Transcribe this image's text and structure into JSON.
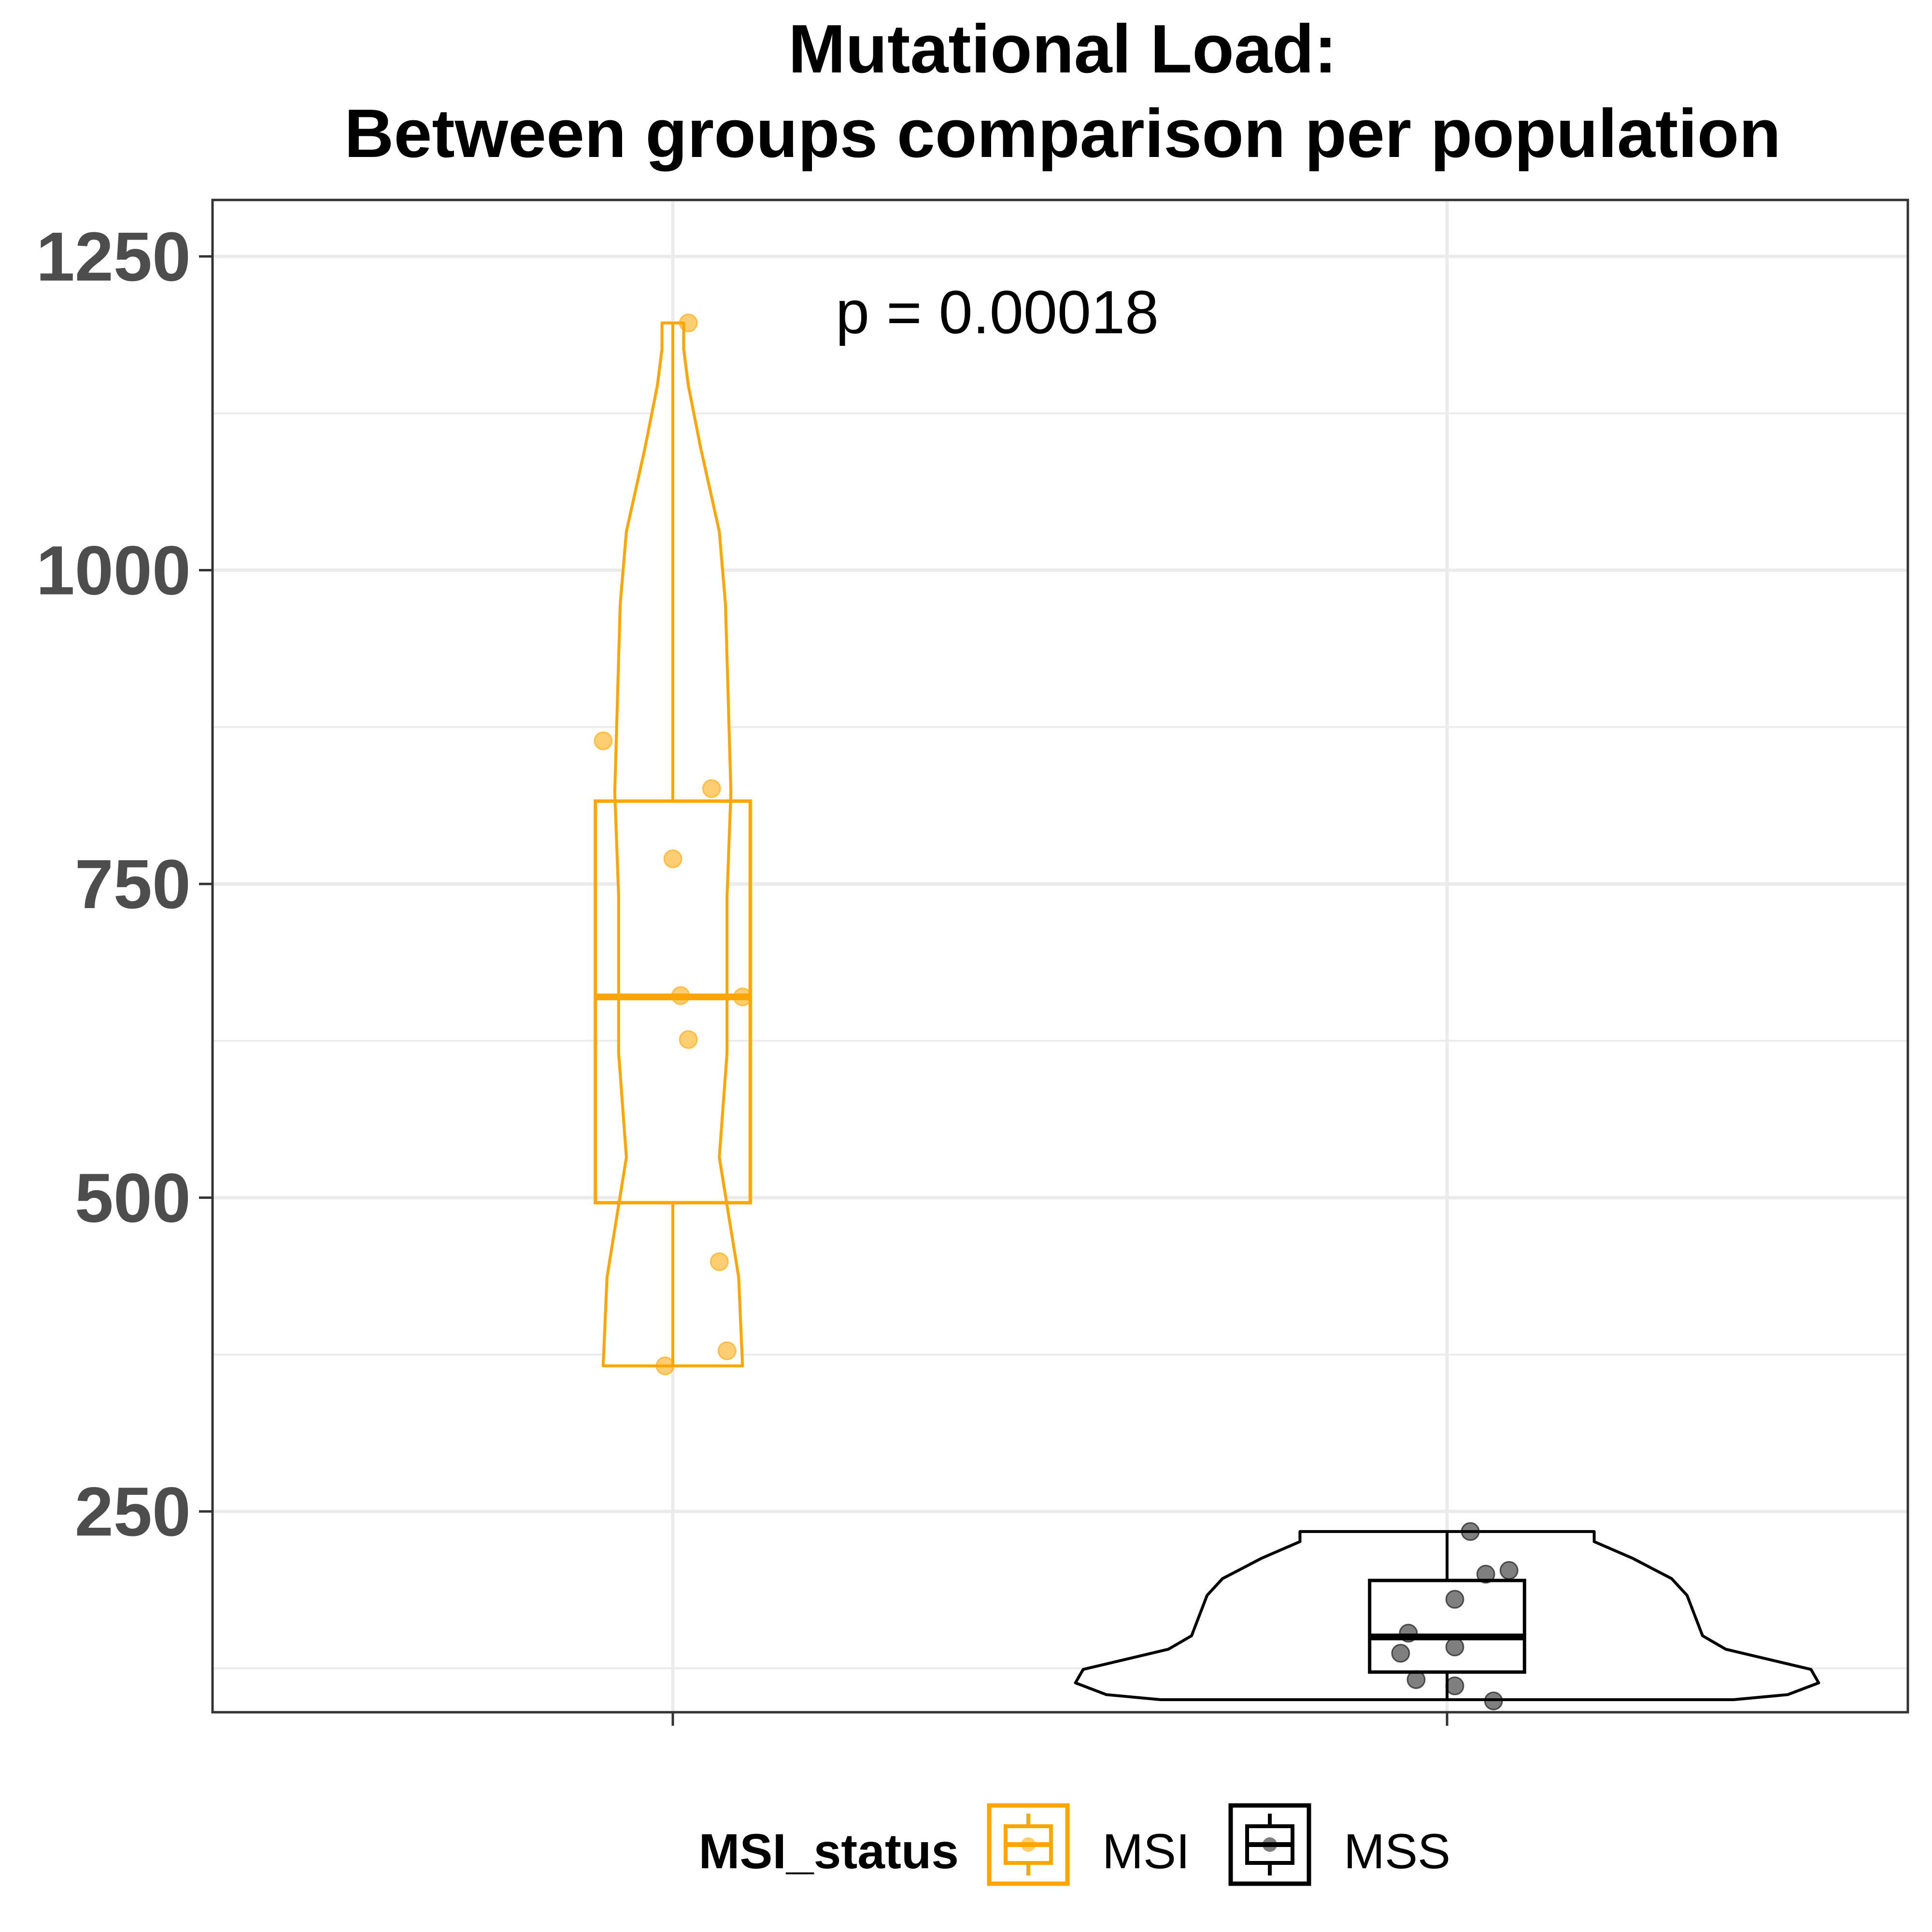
{
  "chart_data": {
    "type": "violin-box-jitter",
    "title_lines": [
      "Mutational Load:",
      "Between groups comparison per population"
    ],
    "xlabel": "",
    "ylabel": "",
    "ylim": [
      90,
      1295
    ],
    "yticks": [
      250,
      500,
      750,
      1000,
      1250
    ],
    "grid": true,
    "categories": [
      "MSI",
      "MSS"
    ],
    "annotation": "p = 0.00018",
    "legend": {
      "title": "MSI_status",
      "position": "bottom",
      "entries": [
        {
          "label": "MSI",
          "color": "#ffa500"
        },
        {
          "label": "MSS",
          "color": "#000000"
        }
      ]
    },
    "series": [
      {
        "name": "MSI",
        "color": "#ffa500",
        "box": {
          "q1": 496,
          "median": 660,
          "q3": 816
        },
        "violin_range": [
          366,
          1197
        ],
        "points": [
          {
            "jitter": 0.02,
            "value": 1197
          },
          {
            "jitter": -0.09,
            "value": 864
          },
          {
            "jitter": 0.05,
            "value": 826
          },
          {
            "jitter": 0.0,
            "value": 770
          },
          {
            "jitter": 0.01,
            "value": 661
          },
          {
            "jitter": 0.09,
            "value": 660
          },
          {
            "jitter": 0.02,
            "value": 626
          },
          {
            "jitter": 0.06,
            "value": 449
          },
          {
            "jitter": 0.07,
            "value": 378
          },
          {
            "jitter": -0.01,
            "value": 366
          }
        ]
      },
      {
        "name": "MSS",
        "color": "#000000",
        "box": {
          "q1": 122,
          "median": 150,
          "q3": 195
        },
        "violin_range": [
          100,
          234
        ],
        "points": [
          {
            "jitter": 0.03,
            "value": 234
          },
          {
            "jitter": 0.08,
            "value": 203
          },
          {
            "jitter": 0.05,
            "value": 200
          },
          {
            "jitter": 0.01,
            "value": 180
          },
          {
            "jitter": -0.05,
            "value": 153
          },
          {
            "jitter": 0.01,
            "value": 142
          },
          {
            "jitter": -0.06,
            "value": 137
          },
          {
            "jitter": -0.04,
            "value": 116
          },
          {
            "jitter": 0.01,
            "value": 111
          },
          {
            "jitter": 0.06,
            "value": 99
          }
        ]
      }
    ]
  }
}
